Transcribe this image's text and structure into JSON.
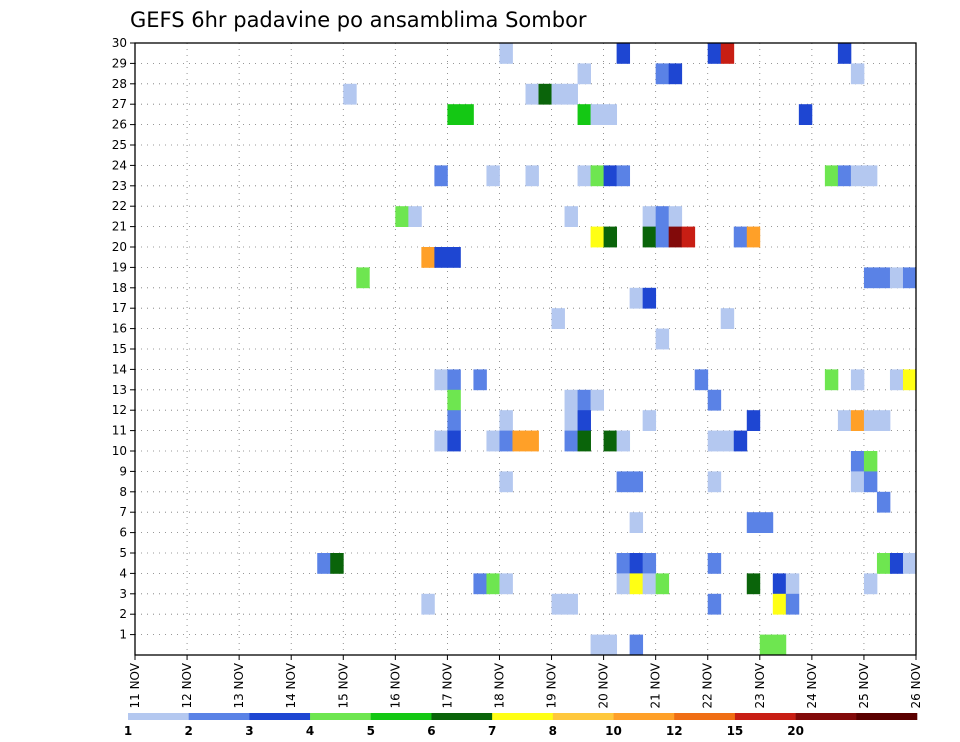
{
  "chart_data": {
    "type": "heatmap",
    "title": "GEFS 6hr padavine po ansamblima Sombor",
    "xlabel": "",
    "ylabel": "",
    "x_ticks": [
      "11 NOV",
      "12 NOV",
      "13 NOV",
      "14 NOV",
      "15 NOV",
      "16 NOV",
      "17 NOV",
      "18 NOV",
      "19 NOV",
      "20 NOV",
      "21 NOV",
      "22 NOV",
      "23 NOV",
      "24 NOV",
      "25 NOV",
      "26 NOV"
    ],
    "x_unit": "days since 11 NOV 00z, 6-hour steps",
    "x_range": [
      0,
      15
    ],
    "y_ticks": [
      1,
      2,
      3,
      4,
      5,
      6,
      7,
      8,
      9,
      10,
      11,
      12,
      13,
      14,
      15,
      16,
      17,
      18,
      19,
      20,
      21,
      22,
      23,
      24,
      25,
      26,
      27,
      28,
      29,
      30
    ],
    "y_range": [
      0,
      30
    ],
    "grid": true,
    "colorbar": {
      "placement": "bottom",
      "levels": [
        "1",
        "2",
        "3",
        "4",
        "5",
        "6",
        "7",
        "8",
        "10",
        "12",
        "15",
        "20"
      ],
      "colors": [
        "#b4c8f0",
        "#5a82e6",
        "#1e46d2",
        "#6ee650",
        "#14c814",
        "#0a640a",
        "#ffff14",
        "#ffc83c",
        "#ffa028",
        "#f06e14",
        "#c81e14",
        "#820a0a",
        "#5a0000"
      ]
    },
    "cells": [
      {
        "x": 7.0,
        "y": 30,
        "v": 1
      },
      {
        "x": 9.25,
        "y": 30,
        "v": 3
      },
      {
        "x": 11.0,
        "y": 30,
        "v": 3
      },
      {
        "x": 11.25,
        "y": 30,
        "v": 11
      },
      {
        "x": 13.5,
        "y": 30,
        "v": 3
      },
      {
        "x": 8.5,
        "y": 29,
        "v": 1
      },
      {
        "x": 10.0,
        "y": 29,
        "v": 2
      },
      {
        "x": 10.25,
        "y": 29,
        "v": 3
      },
      {
        "x": 13.75,
        "y": 29,
        "v": 1
      },
      {
        "x": 4.0,
        "y": 28,
        "v": 1
      },
      {
        "x": 7.5,
        "y": 28,
        "v": 1
      },
      {
        "x": 7.75,
        "y": 28,
        "v": 6
      },
      {
        "x": 8.0,
        "y": 28,
        "v": 1
      },
      {
        "x": 8.25,
        "y": 28,
        "v": 1
      },
      {
        "x": 6.0,
        "y": 27,
        "v": 5
      },
      {
        "x": 6.25,
        "y": 27,
        "v": 5
      },
      {
        "x": 8.5,
        "y": 27,
        "v": 5
      },
      {
        "x": 8.75,
        "y": 27,
        "v": 1
      },
      {
        "x": 9.0,
        "y": 27,
        "v": 1
      },
      {
        "x": 12.75,
        "y": 27,
        "v": 3
      },
      {
        "x": 5.75,
        "y": 24,
        "v": 2
      },
      {
        "x": 6.75,
        "y": 24,
        "v": 1
      },
      {
        "x": 7.5,
        "y": 24,
        "v": 1
      },
      {
        "x": 8.5,
        "y": 24,
        "v": 1
      },
      {
        "x": 8.75,
        "y": 24,
        "v": 4
      },
      {
        "x": 9.0,
        "y": 24,
        "v": 3
      },
      {
        "x": 9.25,
        "y": 24,
        "v": 2
      },
      {
        "x": 13.25,
        "y": 24,
        "v": 4
      },
      {
        "x": 13.5,
        "y": 24,
        "v": 2
      },
      {
        "x": 13.75,
        "y": 24,
        "v": 1
      },
      {
        "x": 14.0,
        "y": 24,
        "v": 1
      },
      {
        "x": 5.0,
        "y": 22,
        "v": 4
      },
      {
        "x": 5.25,
        "y": 22,
        "v": 1
      },
      {
        "x": 8.25,
        "y": 22,
        "v": 1
      },
      {
        "x": 9.75,
        "y": 22,
        "v": 1
      },
      {
        "x": 10.0,
        "y": 22,
        "v": 2
      },
      {
        "x": 10.25,
        "y": 22,
        "v": 1
      },
      {
        "x": 8.75,
        "y": 21,
        "v": 7
      },
      {
        "x": 9.0,
        "y": 21,
        "v": 6
      },
      {
        "x": 9.75,
        "y": 21,
        "v": 6
      },
      {
        "x": 10.0,
        "y": 21,
        "v": 2
      },
      {
        "x": 10.25,
        "y": 21,
        "v": 12
      },
      {
        "x": 10.5,
        "y": 21,
        "v": 11
      },
      {
        "x": 11.5,
        "y": 21,
        "v": 2
      },
      {
        "x": 11.75,
        "y": 21,
        "v": 9
      },
      {
        "x": 5.5,
        "y": 20,
        "v": 9
      },
      {
        "x": 5.75,
        "y": 20,
        "v": 3
      },
      {
        "x": 6.0,
        "y": 20,
        "v": 3
      },
      {
        "x": 4.25,
        "y": 19,
        "v": 4
      },
      {
        "x": 14.0,
        "y": 19,
        "v": 2
      },
      {
        "x": 14.25,
        "y": 19,
        "v": 2
      },
      {
        "x": 14.5,
        "y": 19,
        "v": 1
      },
      {
        "x": 14.75,
        "y": 19,
        "v": 2
      },
      {
        "x": 9.5,
        "y": 18,
        "v": 1
      },
      {
        "x": 9.75,
        "y": 18,
        "v": 3
      },
      {
        "x": 8.0,
        "y": 17,
        "v": 1
      },
      {
        "x": 11.25,
        "y": 17,
        "v": 1
      },
      {
        "x": 10.0,
        "y": 16,
        "v": 1
      },
      {
        "x": 5.75,
        "y": 14,
        "v": 1
      },
      {
        "x": 6.0,
        "y": 14,
        "v": 2
      },
      {
        "x": 6.5,
        "y": 14,
        "v": 2
      },
      {
        "x": 10.75,
        "y": 14,
        "v": 2
      },
      {
        "x": 13.25,
        "y": 14,
        "v": 4
      },
      {
        "x": 13.75,
        "y": 14,
        "v": 1
      },
      {
        "x": 14.5,
        "y": 14,
        "v": 1
      },
      {
        "x": 14.75,
        "y": 14,
        "v": 7
      },
      {
        "x": 6.0,
        "y": 13,
        "v": 4
      },
      {
        "x": 8.25,
        "y": 13,
        "v": 1
      },
      {
        "x": 8.5,
        "y": 13,
        "v": 2
      },
      {
        "x": 8.75,
        "y": 13,
        "v": 1
      },
      {
        "x": 11.0,
        "y": 13,
        "v": 2
      },
      {
        "x": 6.0,
        "y": 12,
        "v": 2
      },
      {
        "x": 7.0,
        "y": 12,
        "v": 1
      },
      {
        "x": 8.25,
        "y": 12,
        "v": 1
      },
      {
        "x": 8.5,
        "y": 12,
        "v": 3
      },
      {
        "x": 9.75,
        "y": 12,
        "v": 1
      },
      {
        "x": 11.75,
        "y": 12,
        "v": 3
      },
      {
        "x": 13.5,
        "y": 12,
        "v": 1
      },
      {
        "x": 13.75,
        "y": 12,
        "v": 9
      },
      {
        "x": 14.0,
        "y": 12,
        "v": 1
      },
      {
        "x": 14.25,
        "y": 12,
        "v": 1
      },
      {
        "x": 5.75,
        "y": 11,
        "v": 1
      },
      {
        "x": 6.0,
        "y": 11,
        "v": 3
      },
      {
        "x": 6.75,
        "y": 11,
        "v": 1
      },
      {
        "x": 7.0,
        "y": 11,
        "v": 2
      },
      {
        "x": 7.25,
        "y": 11,
        "v": 9
      },
      {
        "x": 7.5,
        "y": 11,
        "v": 9
      },
      {
        "x": 8.25,
        "y": 11,
        "v": 2
      },
      {
        "x": 8.5,
        "y": 11,
        "v": 6
      },
      {
        "x": 9.0,
        "y": 11,
        "v": 6
      },
      {
        "x": 9.25,
        "y": 11,
        "v": 1
      },
      {
        "x": 11.0,
        "y": 11,
        "v": 1
      },
      {
        "x": 11.25,
        "y": 11,
        "v": 1
      },
      {
        "x": 11.5,
        "y": 11,
        "v": 3
      },
      {
        "x": 13.75,
        "y": 10,
        "v": 2
      },
      {
        "x": 14.0,
        "y": 10,
        "v": 4
      },
      {
        "x": 7.0,
        "y": 9,
        "v": 1
      },
      {
        "x": 9.25,
        "y": 9,
        "v": 2
      },
      {
        "x": 9.5,
        "y": 9,
        "v": 2
      },
      {
        "x": 11.0,
        "y": 9,
        "v": 1
      },
      {
        "x": 13.75,
        "y": 9,
        "v": 1
      },
      {
        "x": 14.0,
        "y": 9,
        "v": 2
      },
      {
        "x": 14.25,
        "y": 8,
        "v": 2
      },
      {
        "x": 9.5,
        "y": 7,
        "v": 1
      },
      {
        "x": 11.75,
        "y": 7,
        "v": 2
      },
      {
        "x": 12.0,
        "y": 7,
        "v": 2
      },
      {
        "x": 3.5,
        "y": 5,
        "v": 2
      },
      {
        "x": 3.75,
        "y": 5,
        "v": 6
      },
      {
        "x": 9.25,
        "y": 5,
        "v": 2
      },
      {
        "x": 9.5,
        "y": 5,
        "v": 3
      },
      {
        "x": 9.75,
        "y": 5,
        "v": 2
      },
      {
        "x": 11.0,
        "y": 5,
        "v": 2
      },
      {
        "x": 14.25,
        "y": 5,
        "v": 4
      },
      {
        "x": 14.5,
        "y": 5,
        "v": 3
      },
      {
        "x": 14.75,
        "y": 5,
        "v": 1
      },
      {
        "x": 6.5,
        "y": 4,
        "v": 2
      },
      {
        "x": 6.75,
        "y": 4,
        "v": 4
      },
      {
        "x": 7.0,
        "y": 4,
        "v": 1
      },
      {
        "x": 9.25,
        "y": 4,
        "v": 1
      },
      {
        "x": 9.5,
        "y": 4,
        "v": 7
      },
      {
        "x": 9.75,
        "y": 4,
        "v": 1
      },
      {
        "x": 10.0,
        "y": 4,
        "v": 4
      },
      {
        "x": 11.75,
        "y": 4,
        "v": 6
      },
      {
        "x": 12.25,
        "y": 4,
        "v": 3
      },
      {
        "x": 12.5,
        "y": 4,
        "v": 1
      },
      {
        "x": 14.0,
        "y": 4,
        "v": 1
      },
      {
        "x": 5.5,
        "y": 3,
        "v": 1
      },
      {
        "x": 8.0,
        "y": 3,
        "v": 1
      },
      {
        "x": 8.25,
        "y": 3,
        "v": 1
      },
      {
        "x": 11.0,
        "y": 3,
        "v": 2
      },
      {
        "x": 12.25,
        "y": 3,
        "v": 7
      },
      {
        "x": 12.5,
        "y": 3,
        "v": 2
      },
      {
        "x": 8.75,
        "y": 1,
        "v": 1
      },
      {
        "x": 9.0,
        "y": 1,
        "v": 1
      },
      {
        "x": 9.5,
        "y": 1,
        "v": 2
      },
      {
        "x": 12.0,
        "y": 1,
        "v": 4
      },
      {
        "x": 12.25,
        "y": 1,
        "v": 4
      }
    ]
  }
}
